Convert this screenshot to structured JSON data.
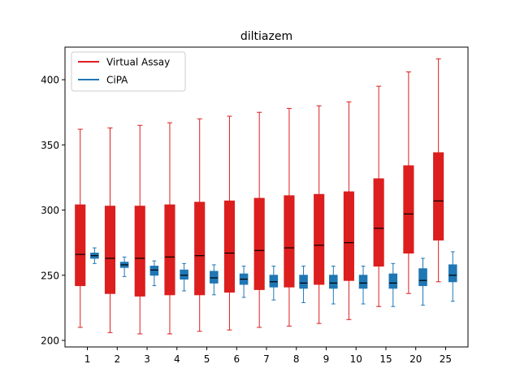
{
  "chart_data": {
    "type": "box",
    "title": "diltiazem",
    "xlabel": "",
    "ylabel": "",
    "ylim": [
      195,
      425
    ],
    "yticks": [
      200,
      250,
      300,
      350,
      400
    ],
    "grid": false,
    "legend_position": "top-left",
    "categories": [
      "1",
      "2",
      "3",
      "4",
      "5",
      "6",
      "7",
      "8",
      "9",
      "10",
      "15",
      "20",
      "25"
    ],
    "series": [
      {
        "name": "Virtual Assay",
        "color": "#dc1e1e",
        "median_color": "#000000",
        "boxes": [
          {
            "whislo": 210,
            "q1": 242,
            "med": 266,
            "q3": 304,
            "whishi": 362
          },
          {
            "whislo": 206,
            "q1": 236,
            "med": 263,
            "q3": 303,
            "whishi": 363
          },
          {
            "whislo": 205,
            "q1": 234,
            "med": 263,
            "q3": 303,
            "whishi": 365
          },
          {
            "whislo": 205,
            "q1": 235,
            "med": 264,
            "q3": 304,
            "whishi": 367
          },
          {
            "whislo": 207,
            "q1": 235,
            "med": 265,
            "q3": 306,
            "whishi": 370
          },
          {
            "whislo": 208,
            "q1": 237,
            "med": 267,
            "q3": 307,
            "whishi": 372
          },
          {
            "whislo": 210,
            "q1": 239,
            "med": 269,
            "q3": 309,
            "whishi": 375
          },
          {
            "whislo": 211,
            "q1": 241,
            "med": 271,
            "q3": 311,
            "whishi": 378
          },
          {
            "whislo": 213,
            "q1": 243,
            "med": 273,
            "q3": 312,
            "whishi": 380
          },
          {
            "whislo": 216,
            "q1": 246,
            "med": 275,
            "q3": 314,
            "whishi": 383
          },
          {
            "whislo": 226,
            "q1": 257,
            "med": 286,
            "q3": 324,
            "whishi": 395
          },
          {
            "whislo": 236,
            "q1": 267,
            "med": 297,
            "q3": 334,
            "whishi": 406
          },
          {
            "whislo": 245,
            "q1": 277,
            "med": 307,
            "q3": 344,
            "whishi": 416
          }
        ]
      },
      {
        "name": "CiPA",
        "color": "#1f77b4",
        "median_color": "#000000",
        "boxes": [
          {
            "whislo": 259,
            "q1": 263,
            "med": 265,
            "q3": 267,
            "whishi": 271
          },
          {
            "whislo": 249,
            "q1": 256,
            "med": 258,
            "q3": 260,
            "whishi": 264
          },
          {
            "whislo": 242,
            "q1": 250,
            "med": 254,
            "q3": 257,
            "whishi": 261
          },
          {
            "whislo": 238,
            "q1": 247,
            "med": 250,
            "q3": 254,
            "whishi": 259
          },
          {
            "whislo": 235,
            "q1": 244,
            "med": 248,
            "q3": 253,
            "whishi": 258
          },
          {
            "whislo": 233,
            "q1": 243,
            "med": 247,
            "q3": 251,
            "whishi": 257
          },
          {
            "whislo": 231,
            "q1": 241,
            "med": 245,
            "q3": 250,
            "whishi": 257
          },
          {
            "whislo": 229,
            "q1": 240,
            "med": 244,
            "q3": 250,
            "whishi": 257
          },
          {
            "whislo": 228,
            "q1": 240,
            "med": 244,
            "q3": 250,
            "whishi": 257
          },
          {
            "whislo": 228,
            "q1": 240,
            "med": 244,
            "q3": 250,
            "whishi": 257
          },
          {
            "whislo": 226,
            "q1": 240,
            "med": 244,
            "q3": 251,
            "whishi": 259
          },
          {
            "whislo": 227,
            "q1": 242,
            "med": 246,
            "q3": 255,
            "whishi": 263
          },
          {
            "whislo": 230,
            "q1": 245,
            "med": 250,
            "q3": 258,
            "whishi": 268
          }
        ]
      }
    ]
  }
}
